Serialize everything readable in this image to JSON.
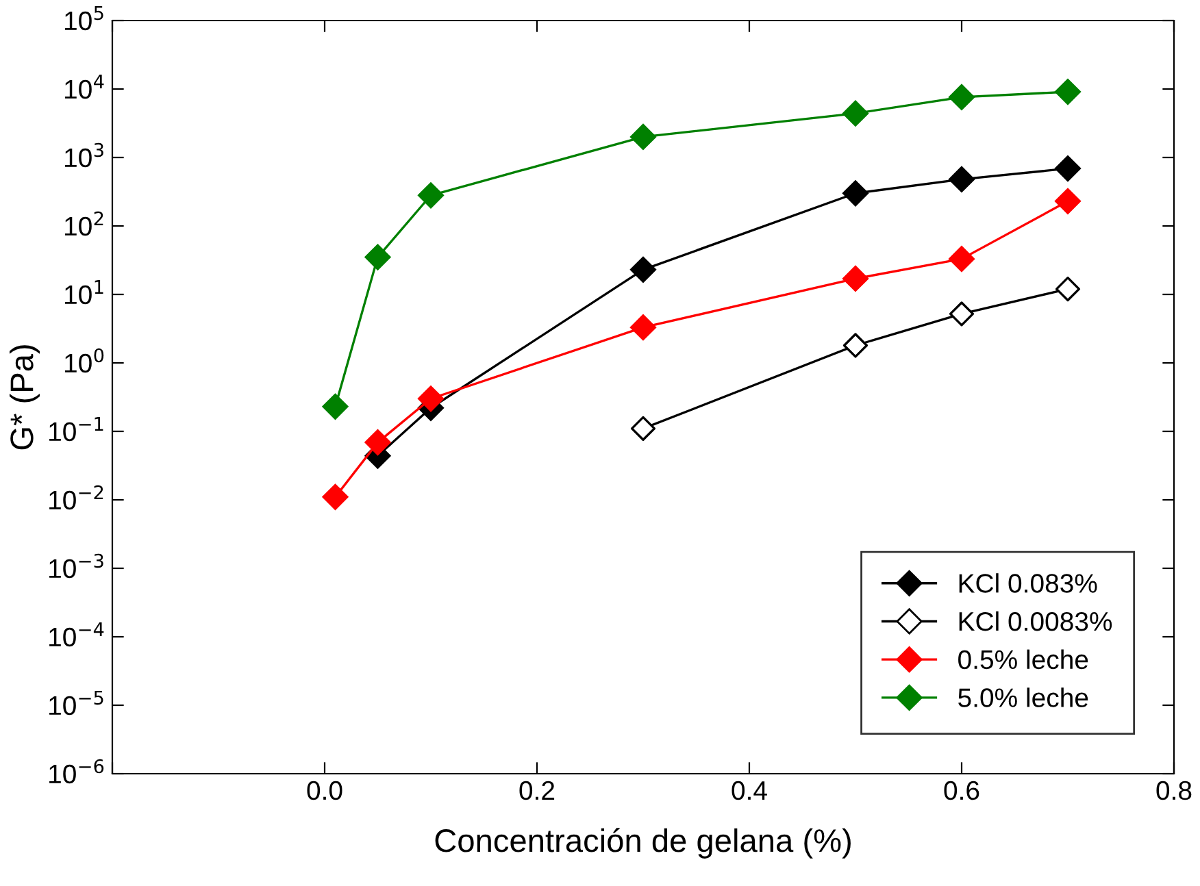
{
  "chart_data": {
    "type": "line",
    "xlabel": "Concentración de gelana (%)",
    "ylabel": "G* (Pa)",
    "log": "y",
    "marker": "diamond",
    "grid": false,
    "legend": "bottom right",
    "xlim": [
      -0.2,
      0.8
    ],
    "xticks": [
      {
        "value": -0.2,
        "label": null
      },
      {
        "value": 0.0,
        "label": "0.0"
      },
      0.2,
      0.4,
      0.6,
      0.8
    ],
    "ylim": [
      1e-06,
      100000.0
    ],
    "yticks": [
      {
        "value": 1e-06,
        "label": "10$^{−6}$"
      },
      {
        "value": 1e-05,
        "label": "10$^{−5}$"
      },
      {
        "value": 0.0001,
        "label": "10$^{−4}$"
      },
      {
        "value": 0.001,
        "label": "10$^{−3}$"
      },
      {
        "value": 0.01,
        "label": "10$^{−2}$"
      },
      {
        "value": 0.1,
        "label": "10$^{−1}$"
      },
      {
        "value": 1,
        "label": "10$^{0}$"
      },
      {
        "value": 10,
        "label": "10$^{1}$"
      },
      {
        "value": 100,
        "label": "10$^{2}$"
      },
      {
        "value": 1000,
        "label": "10$^{3}$"
      },
      {
        "value": 10000,
        "label": "10$^{4}$"
      },
      {
        "value": 100000,
        "label": "10$^{5}$"
      }
    ],
    "series": [
      {
        "name": "KCl 0.083%",
        "color": "#000000",
        "x": [
          0.05,
          0.1,
          0.3,
          0.5,
          0.6,
          0.7
        ],
        "values": [
          0.044,
          0.22,
          23,
          300,
          480,
          690
        ]
      },
      {
        "name": "KCl 0.0083%",
        "color": "#000000",
        "colors": [
          "#ffffff",
          "#ffffff",
          "#ffffff",
          "#ffffff"
        ],
        "x": [
          0.3,
          0.5,
          0.6,
          0.7
        ],
        "values": [
          0.11,
          1.8,
          5.2,
          12
        ]
      },
      {
        "name": "0.5% leche",
        "color": "#ff0000",
        "x": [
          0.01,
          0.05,
          0.1,
          0.3,
          0.5,
          0.6,
          0.7
        ],
        "values": [
          0.011,
          0.069,
          0.3,
          3.3,
          17,
          33,
          230
        ]
      },
      {
        "name": "5.0% leche",
        "color": "#008000",
        "x": [
          0.01,
          0.05,
          0.1,
          0.3,
          0.5,
          0.6,
          0.7
        ],
        "values": [
          0.23,
          35,
          280,
          2000,
          4400,
          7600,
          9100
        ]
      }
    ]
  }
}
